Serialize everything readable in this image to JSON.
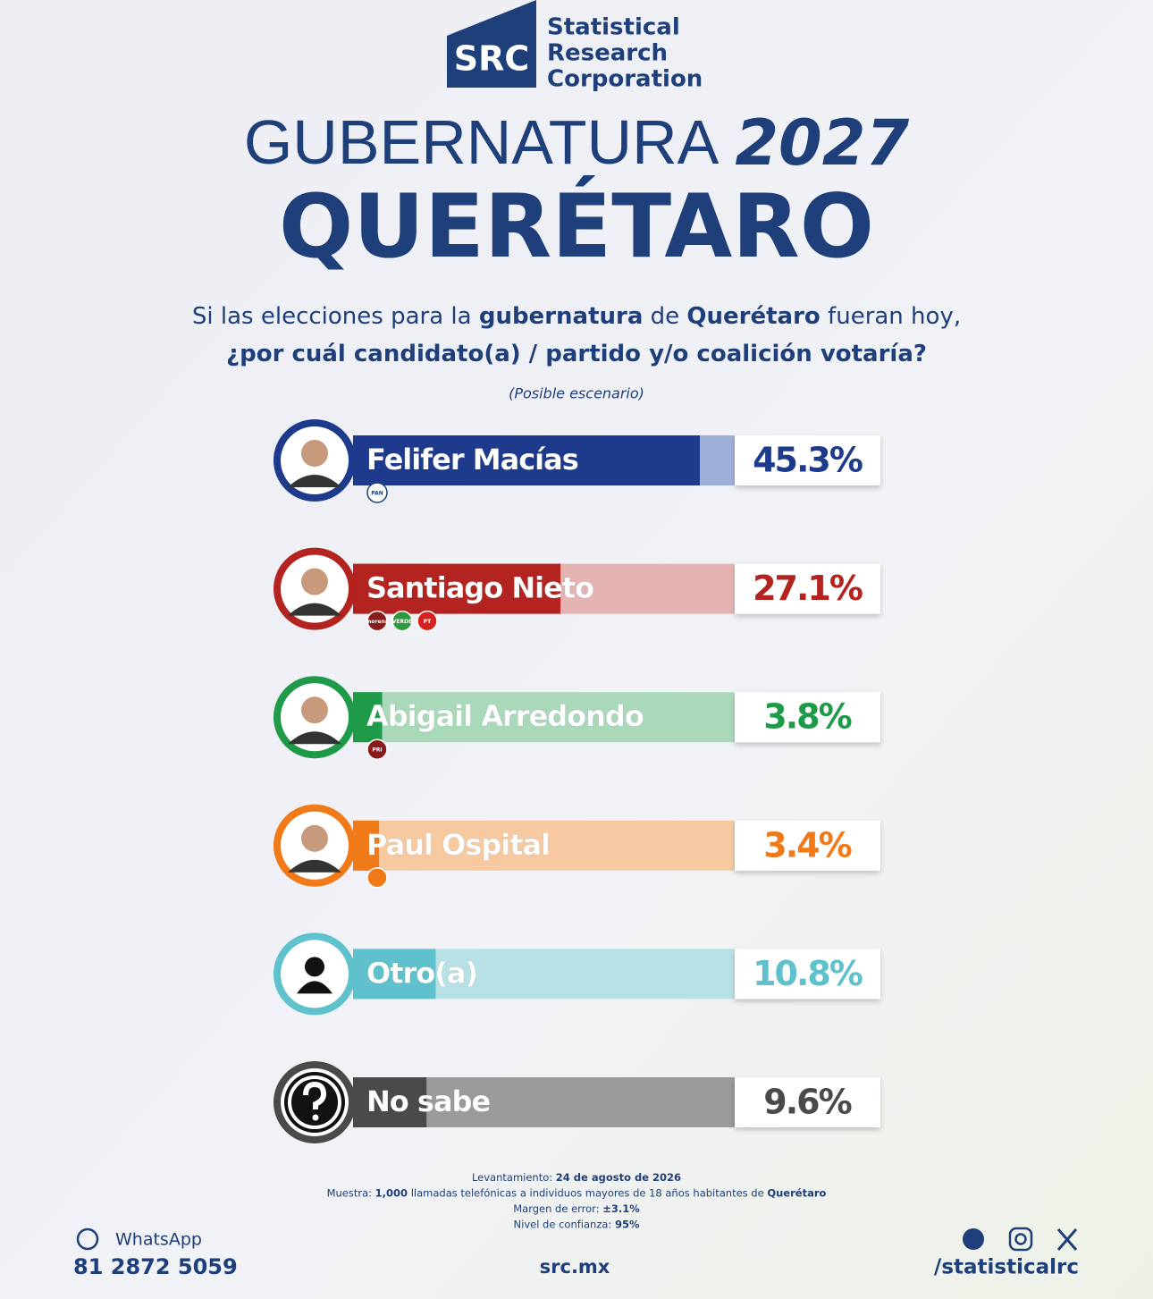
{
  "logo": {
    "mark": "SRC",
    "lines": [
      "Statistical",
      "Research",
      "Corporation"
    ]
  },
  "title": {
    "line1": "GUBERNATURA",
    "year": "2027",
    "state": "QUERÉTARO"
  },
  "question": [
    [
      {
        "text": "Si las elecciones para la ",
        "bold": false
      },
      {
        "text": "gubernatura",
        "bold": true
      },
      {
        "text": " de ",
        "bold": false
      },
      {
        "text": "Querétaro",
        "bold": true
      },
      {
        "text": " fueran hoy,",
        "bold": false
      }
    ],
    [
      {
        "text": "¿por cuál candidato(a) / partido y/o coalición votaría?",
        "bold": true
      }
    ]
  ],
  "chart_data": {
    "type": "bar",
    "subtitle": "(Posible escenario)",
    "categories": [
      "Felifer Macías",
      "Santiago Nieto",
      "Abigail Arredondo",
      "Paul Ospital",
      "Otro(a)",
      "No sabe"
    ],
    "values": [
      45.3,
      27.1,
      3.8,
      3.4,
      10.8,
      9.6
    ],
    "value_labels": [
      "45.3%",
      "27.1%",
      "3.8%",
      "3.4%",
      "10.8%",
      "9.6%"
    ],
    "colors": [
      "#1d3a8c",
      "#b3231f",
      "#1e9a48",
      "#f07a18",
      "#5fc1cb",
      "#4a4a4a"
    ],
    "track_colors": [
      "#9fb0d8",
      "#e6b3b3",
      "#a9d9b9",
      "#f6c9a0",
      "#b8e1e6",
      "#9b9b9b"
    ],
    "parties": [
      [
        "PAN"
      ],
      [
        "morena",
        "VERDE",
        "PT"
      ],
      [
        "PRI"
      ],
      []
    ]
  },
  "footer": {
    "method": [
      [
        {
          "text": "Levantamiento: ",
          "bold": false
        },
        {
          "text": "24 de agosto de 2026",
          "bold": true
        }
      ],
      [
        {
          "text": "Muestra: ",
          "bold": false
        },
        {
          "text": "1,000",
          "bold": true
        },
        {
          "text": " llamadas telefónicas a individuos mayores de 18 años habitantes de ",
          "bold": false
        },
        {
          "text": "Querétaro",
          "bold": true
        }
      ],
      [
        {
          "text": "Margen de error: ",
          "bold": false
        },
        {
          "text": "±3.1%",
          "bold": true
        }
      ],
      [
        {
          "text": "Nivel de confianza: ",
          "bold": false
        },
        {
          "text": "95%",
          "bold": true
        }
      ]
    ],
    "whatsapp": "WhatsApp",
    "phone": "81 2872 5059",
    "site": "src.mx",
    "handle": "/statisticalrc"
  }
}
